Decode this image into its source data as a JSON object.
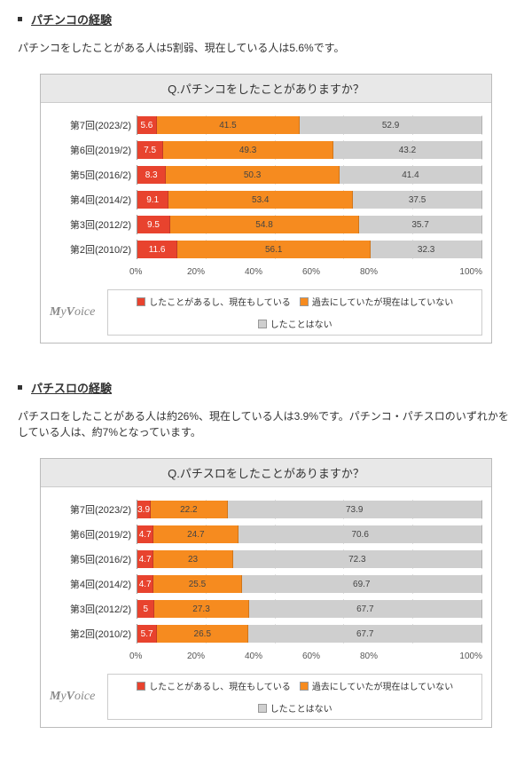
{
  "colors": {
    "current": "#e8432e",
    "past": "#f68b1f",
    "never": "#cfcfcf"
  },
  "legend_labels": [
    "したことがあるし、現在もしている",
    "過去にしていたが現在はしていない",
    "したことはない"
  ],
  "axis_ticks": [
    "0%",
    "20%",
    "40%",
    "60%",
    "80%",
    "100%"
  ],
  "logo": "MyVoice",
  "sections": [
    {
      "heading": "パチンコの経験",
      "summary": "パチンコをしたことがある人は5割弱、現在している人は5.6%です。",
      "chart_title": "Q.パチンコをしたことがありますか？",
      "rows": [
        {
          "label": "第7回(2023/2)",
          "vals": [
            5.6,
            41.5,
            52.9
          ]
        },
        {
          "label": "第6回(2019/2)",
          "vals": [
            7.5,
            49.3,
            43.2
          ]
        },
        {
          "label": "第5回(2016/2)",
          "vals": [
            8.3,
            50.3,
            41.4
          ]
        },
        {
          "label": "第4回(2014/2)",
          "vals": [
            9.1,
            53.4,
            37.5
          ]
        },
        {
          "label": "第3回(2012/2)",
          "vals": [
            9.5,
            54.8,
            35.7
          ]
        },
        {
          "label": "第2回(2010/2)",
          "vals": [
            11.6,
            56.1,
            32.3
          ]
        }
      ]
    },
    {
      "heading": "パチスロの経験",
      "summary": "パチスロをしたことがある人は約26%、現在している人は3.9%です。パチンコ・パチスロのいずれかをしている人は、約7%となっています。",
      "chart_title": "Q.パチスロをしたことがありますか？",
      "rows": [
        {
          "label": "第7回(2023/2)",
          "vals": [
            3.9,
            22.2,
            73.9
          ]
        },
        {
          "label": "第6回(2019/2)",
          "vals": [
            4.7,
            24.7,
            70.6
          ]
        },
        {
          "label": "第5回(2016/2)",
          "vals": [
            4.7,
            23.0,
            72.3
          ]
        },
        {
          "label": "第4回(2014/2)",
          "vals": [
            4.7,
            25.5,
            69.7
          ]
        },
        {
          "label": "第3回(2012/2)",
          "vals": [
            5.0,
            27.3,
            67.7
          ]
        },
        {
          "label": "第2回(2010/2)",
          "vals": [
            5.7,
            26.5,
            67.7
          ]
        }
      ]
    }
  ]
}
